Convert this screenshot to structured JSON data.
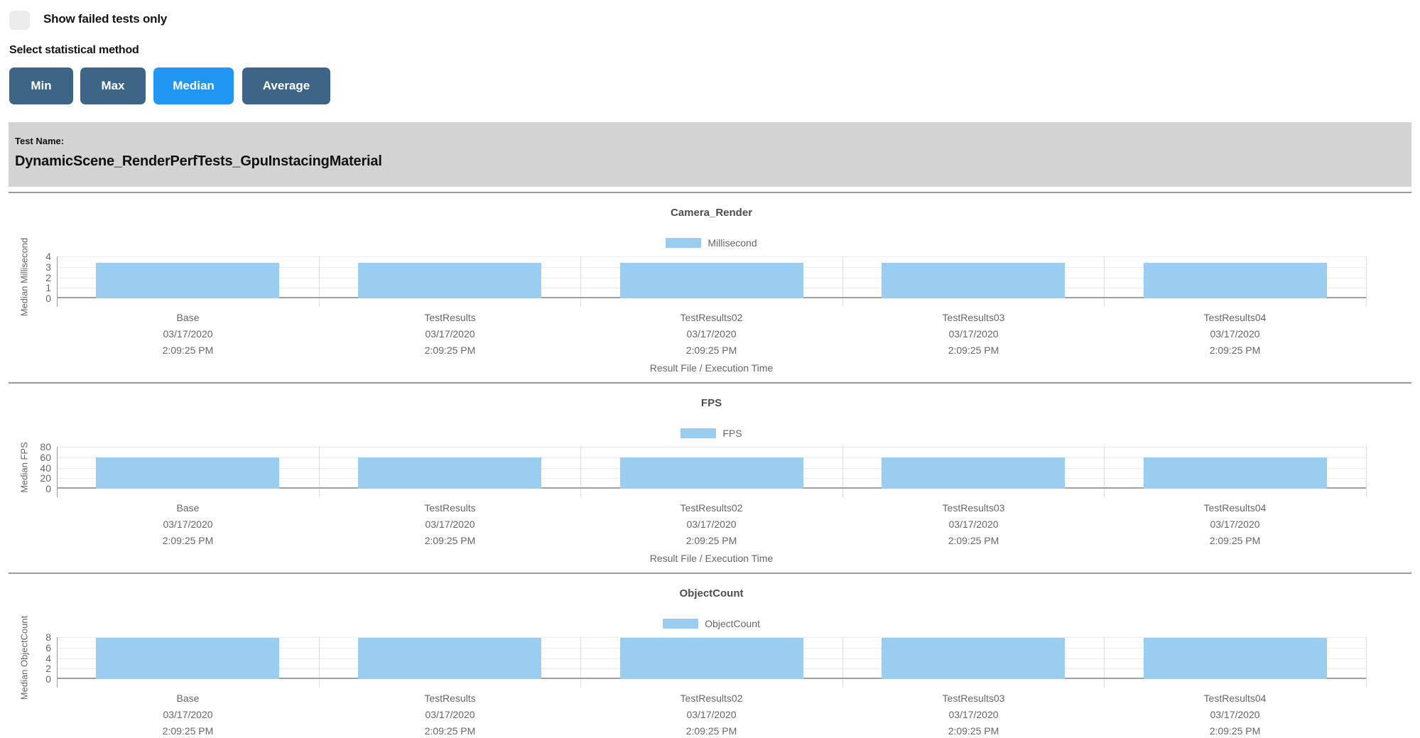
{
  "controls": {
    "show_failed_tests_label": "Show failed tests only",
    "checkbox_checked": false,
    "select_statistical_method_label": "Select statistical method",
    "method_buttons": [
      {
        "label": "Min",
        "active": false
      },
      {
        "label": "Max",
        "active": false
      },
      {
        "label": "Median",
        "active": true
      },
      {
        "label": "Average",
        "active": false
      }
    ]
  },
  "test_header": {
    "label": "Test Name:",
    "name": "DynamicScene_RenderPerfTests_GpuInstacingMaterial"
  },
  "colors": {
    "button_inactive": "#3e6487",
    "button_active": "#2196f3",
    "checkbox_bg": "#ececec",
    "test_header_bg": "#d3d3d3",
    "divider": "#9a9a9a",
    "bar_fill": "#9bcdf0"
  },
  "chart_data": [
    {
      "type": "bar",
      "title": "Camera_Render",
      "legend": "Millisecond",
      "ylabel": "Median Millisecond",
      "xlabel": "Result File / Execution Time",
      "ylim": [
        0,
        4
      ],
      "yticks": [
        4,
        3,
        2,
        1,
        0
      ],
      "categories": [
        "Base",
        "TestResults",
        "TestResults02",
        "TestResults03",
        "TestResults04"
      ],
      "category_dates": [
        "03/17/2020",
        "03/17/2020",
        "03/17/2020",
        "03/17/2020",
        "03/17/2020"
      ],
      "category_times": [
        "2:09:25 PM",
        "2:09:25 PM",
        "2:09:25 PM",
        "2:09:25 PM",
        "2:09:25 PM"
      ],
      "values": [
        3.4,
        3.4,
        3.4,
        3.4,
        3.4
      ],
      "color": "#9bcdf0",
      "grid": true,
      "legend_position": "top"
    },
    {
      "type": "bar",
      "title": "FPS",
      "legend": "FPS",
      "ylabel": "Median FPS",
      "xlabel": "Result File / Execution Time",
      "ylim": [
        0,
        80
      ],
      "yticks": [
        80,
        60,
        40,
        20,
        0
      ],
      "categories": [
        "Base",
        "TestResults",
        "TestResults02",
        "TestResults03",
        "TestResults04"
      ],
      "category_dates": [
        "03/17/2020",
        "03/17/2020",
        "03/17/2020",
        "03/17/2020",
        "03/17/2020"
      ],
      "category_times": [
        "2:09:25 PM",
        "2:09:25 PM",
        "2:09:25 PM",
        "2:09:25 PM",
        "2:09:25 PM"
      ],
      "values": [
        59.5,
        59.5,
        59.5,
        59.5,
        59.5
      ],
      "color": "#9bcdf0",
      "grid": true,
      "legend_position": "top"
    },
    {
      "type": "bar",
      "title": "ObjectCount",
      "legend": "ObjectCount",
      "ylabel": "Median ObjectCount",
      "ylim": [
        0,
        8
      ],
      "yticks": [
        8,
        6,
        4,
        2,
        0
      ],
      "categories": [
        "Base",
        "TestResults",
        "TestResults02",
        "TestResults03",
        "TestResults04"
      ],
      "category_dates": [
        "03/17/2020",
        "03/17/2020",
        "03/17/2020",
        "03/17/2020",
        "03/17/2020"
      ],
      "category_times": [
        "2:09:25 PM",
        "2:09:25 PM",
        "2:09:25 PM",
        "2:09:25 PM",
        "2:09:25 PM"
      ],
      "values": [
        7.8,
        7.8,
        7.8,
        7.8,
        7.8
      ],
      "color": "#9bcdf0",
      "grid": true,
      "legend_position": "top"
    }
  ]
}
